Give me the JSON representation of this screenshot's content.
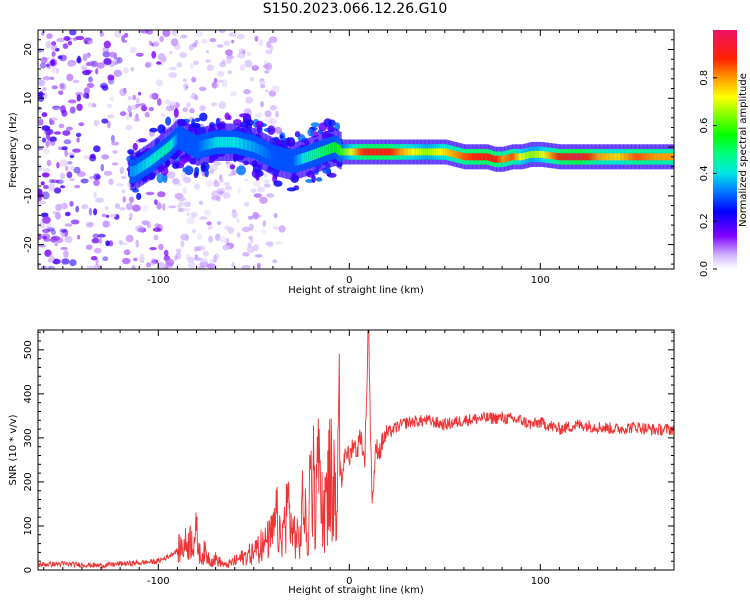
{
  "title": "S150.2023.066.12.26.G10",
  "chart_data": [
    {
      "type": "heatmap",
      "xlabel": "Height of straight line (km)",
      "ylabel": "Frequency (Hz)",
      "xlim": [
        -163,
        170
      ],
      "ylim": [
        -25,
        24
      ],
      "x_ticks": [
        -100,
        0,
        100
      ],
      "y_ticks": [
        -20,
        -10,
        0,
        10,
        20
      ],
      "x_tick_labels": [
        "-100",
        "0",
        "100"
      ],
      "y_tick_labels": [
        "-20",
        "-10",
        "0",
        "10",
        "20"
      ],
      "colorbar": {
        "label": "Normalized spectral amplitude",
        "ticks": [
          "0.0",
          "0.2",
          "0.4",
          "0.6",
          "0.8"
        ],
        "range": [
          0,
          1
        ]
      },
      "ridge": {
        "x": [
          -113,
          -105,
          -95,
          -90,
          -80,
          -70,
          -60,
          -50,
          -40,
          -30,
          -22,
          -15,
          -8,
          -4,
          0,
          5,
          10,
          20,
          30,
          40,
          50,
          60,
          68,
          72,
          76,
          80,
          85,
          90,
          95,
          100,
          110,
          120,
          130,
          140,
          150,
          160,
          170
        ],
        "y": [
          -5,
          -3,
          0,
          2,
          0,
          1,
          1,
          0,
          -2,
          -3,
          -2,
          -1,
          0,
          -1,
          -1,
          -1,
          -1,
          -1,
          -1,
          -1,
          -1,
          -2,
          -2,
          -2,
          -2.5,
          -2.5,
          -2,
          -2,
          -1.5,
          -1.5,
          -2,
          -2,
          -2,
          -2,
          -2,
          -2,
          -2
        ],
        "amplitude": [
          0.35,
          0.4,
          0.45,
          0.3,
          0.3,
          0.4,
          0.4,
          0.35,
          0.3,
          0.3,
          0.45,
          0.5,
          0.55,
          0.6,
          0.7,
          0.85,
          0.9,
          0.9,
          0.75,
          0.65,
          0.75,
          0.85,
          0.9,
          0.9,
          0.9,
          0.8,
          0.85,
          0.7,
          0.65,
          0.7,
          0.9,
          0.95,
          0.8,
          0.75,
          0.85,
          0.8,
          0.8
        ]
      },
      "noise_region_x": [
        -163,
        -95
      ]
    },
    {
      "type": "line",
      "xlabel": "Height of straight line (km)",
      "ylabel": "SNR (10 * v/v)",
      "xlim": [
        -163,
        170
      ],
      "ylim": [
        0,
        545
      ],
      "x_ticks": [
        -100,
        0,
        100
      ],
      "y_ticks": [
        0,
        100,
        200,
        300,
        400,
        500
      ],
      "x_tick_labels": [
        "-100",
        "0",
        "100"
      ],
      "y_tick_labels": [
        "0",
        "100",
        "200",
        "300",
        "400",
        "500"
      ],
      "color": "#ee3333",
      "series": [
        {
          "x": [
            -163,
            -150,
            -140,
            -130,
            -120,
            -110,
            -100,
            -95,
            -90,
            -85,
            -80,
            -78,
            -76,
            -72,
            -70,
            -65,
            -60,
            -55,
            -50,
            -45,
            -40,
            -38,
            -36,
            -32,
            -30,
            -26,
            -24,
            -22,
            -20,
            -18,
            -16,
            -14,
            -12,
            -10,
            -8,
            -6,
            -4,
            -2,
            0,
            2,
            4,
            6,
            8,
            10,
            12,
            14,
            16,
            18,
            20,
            25,
            30,
            40,
            50,
            60,
            70,
            80,
            90,
            95,
            100,
            110,
            120,
            130,
            140,
            150,
            160,
            170
          ],
          "y": [
            12,
            14,
            12,
            10,
            14,
            16,
            20,
            30,
            45,
            60,
            80,
            30,
            40,
            20,
            25,
            10,
            20,
            30,
            40,
            55,
            80,
            120,
            60,
            150,
            90,
            60,
            170,
            50,
            200,
            140,
            240,
            90,
            160,
            220,
            150,
            260,
            200,
            280,
            250,
            290,
            270,
            310,
            240,
            545,
            150,
            280,
            270,
            300,
            310,
            325,
            335,
            340,
            330,
            340,
            345,
            345,
            340,
            330,
            335,
            320,
            330,
            325,
            320,
            325,
            318,
            320
          ]
        }
      ]
    }
  ]
}
